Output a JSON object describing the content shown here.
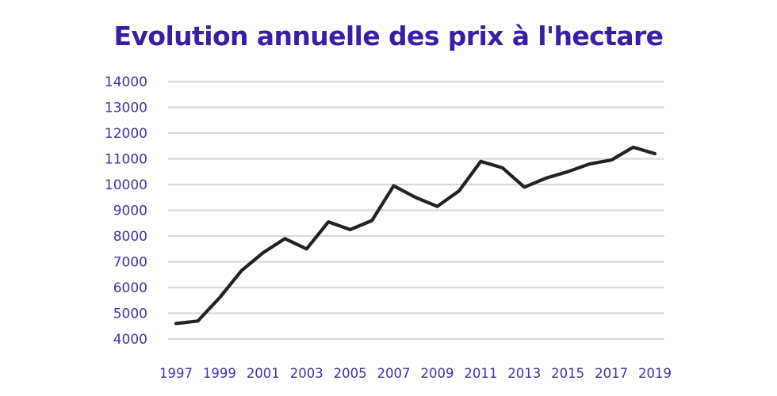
{
  "chart_data": {
    "type": "line",
    "title": "Evolution annuelle des prix à l'hectare",
    "xlabel": "",
    "ylabel": "",
    "x": [
      1997,
      1998,
      1999,
      2000,
      2001,
      2002,
      2003,
      2004,
      2005,
      2006,
      2007,
      2008,
      2009,
      2010,
      2011,
      2012,
      2013,
      2014,
      2015,
      2016,
      2017,
      2018,
      2019
    ],
    "x_tick_labels": [
      "1997",
      "1999",
      "2001",
      "2003",
      "2005",
      "2007",
      "2009",
      "2011",
      "2013",
      "2015",
      "2017",
      "2019"
    ],
    "y_tick_labels": [
      "14000",
      "13000",
      "12000",
      "11000",
      "10000",
      "9000",
      "8000",
      "7000",
      "6000",
      "5000",
      "4000"
    ],
    "series": [
      {
        "values": [
          4600,
          4700,
          5600,
          6650,
          7350,
          7900,
          7500,
          8550,
          8250,
          8600,
          9950,
          9500,
          9150,
          9750,
          10900,
          10650,
          9900,
          10250,
          10500,
          10800,
          10950,
          11450,
          11200
        ]
      }
    ],
    "xlim": [
      1997,
      2019
    ],
    "ylim": [
      4000,
      14000
    ],
    "grid": true,
    "legend": "none",
    "colors": {
      "title": "#3a1fa6",
      "tick_labels": "#4630a8",
      "line": "#222222",
      "grid": "#d9d9d9"
    }
  }
}
